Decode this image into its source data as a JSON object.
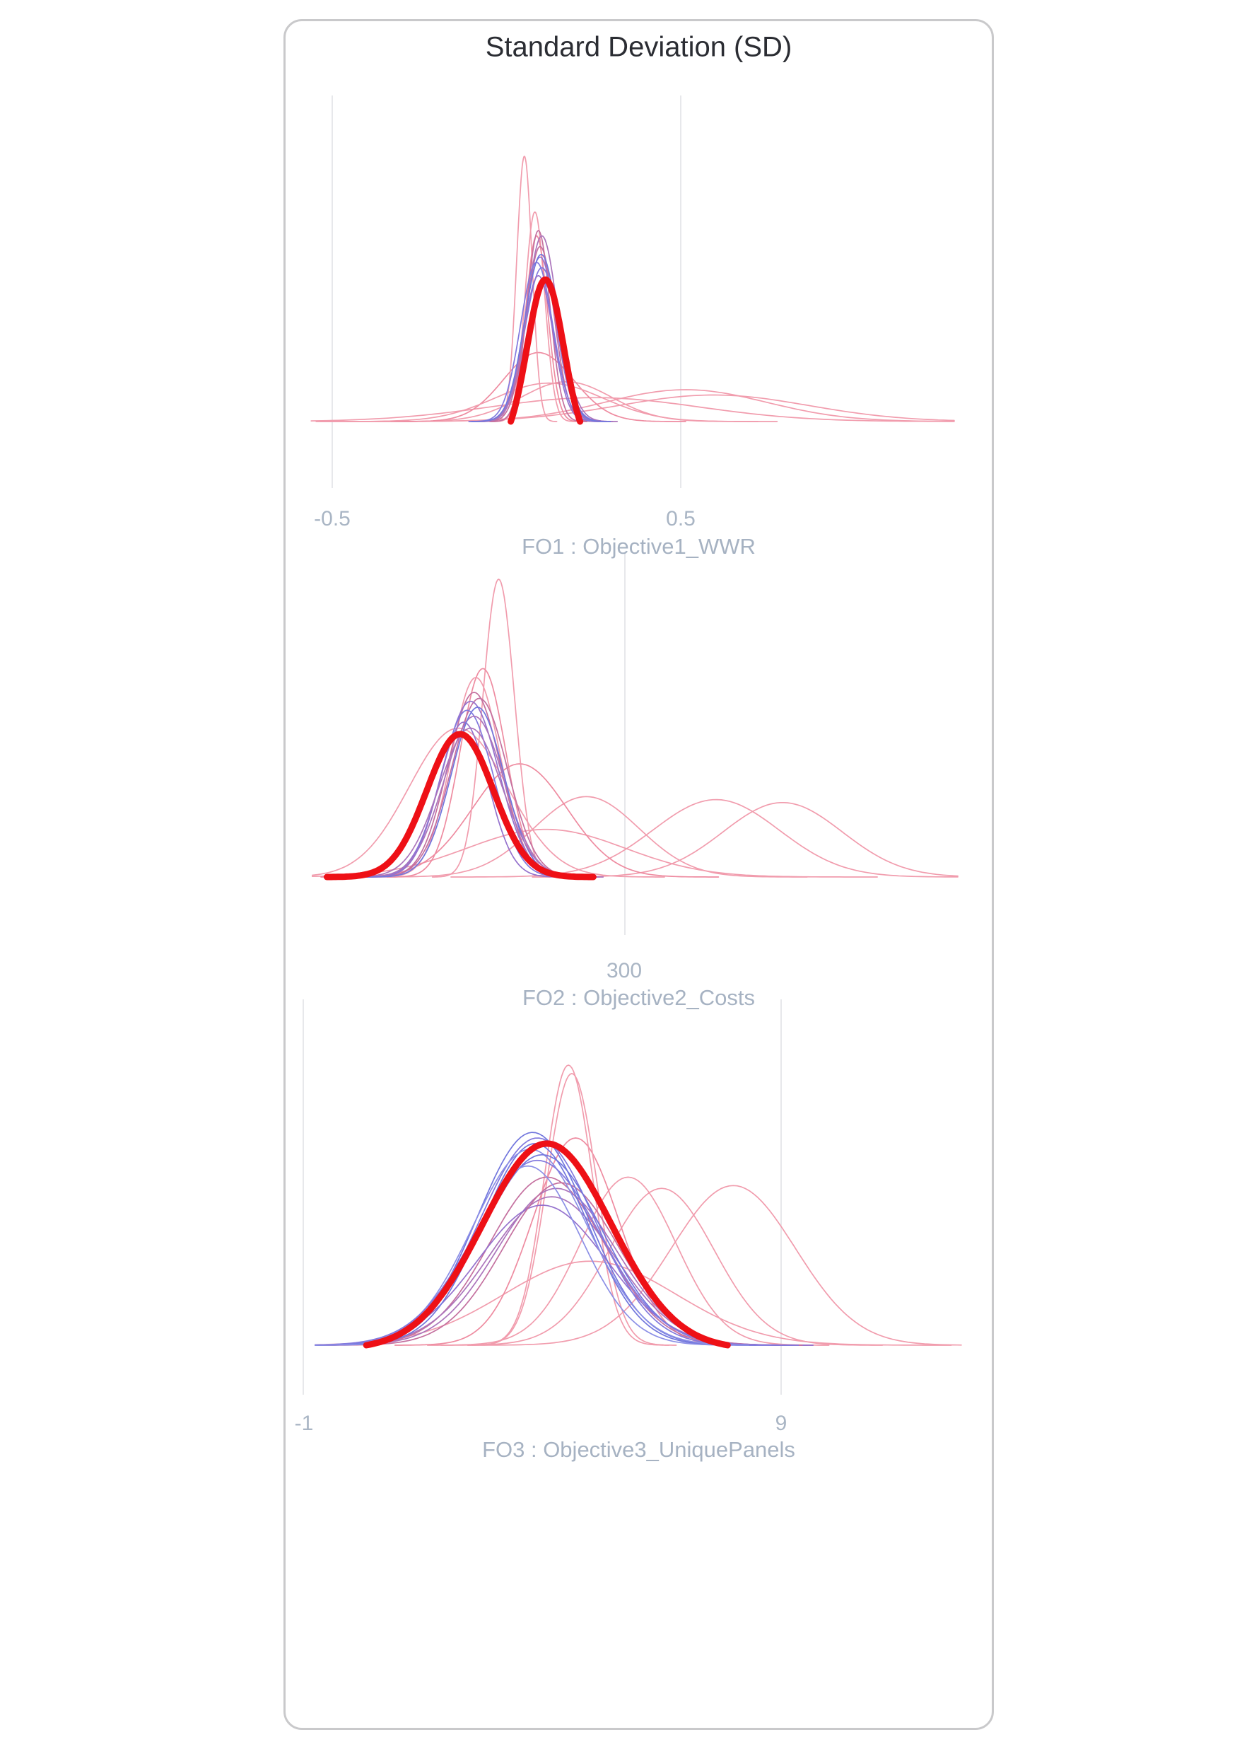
{
  "chart_data": {
    "type": "kde",
    "title": "Standard Deviation (SD)",
    "description": "Three stacked kernel-density (distribution) subplots; many thin iteration curves colored from blue/purple to pink, with one thick red aggregate curve highlighted per subplot.",
    "legend_position": "none",
    "grid": "vertical-only",
    "colors": {
      "highlight_red": "#ee1016",
      "pink": "#f19cad",
      "pink_medium": "#ee8ba0",
      "magenta": "#c4709f",
      "mauve": "#ab74bb",
      "purple": "#9572cd",
      "violet": "#8279de",
      "blue": "#7176dd",
      "blue_light": "#8b8fe6",
      "gridline": "#e7e8eb",
      "tick_text": "#a9b5c4",
      "title_text": "#2b2d33",
      "panel_border": "#c9c9cb"
    },
    "plots": [
      {
        "xlabel": "FO1 : Objective1_WWR",
        "xlim": [
          -0.56,
          1.28
        ],
        "tick_values": [
          -0.5,
          0.5
        ],
        "ticks": [
          {
            "label": "-0.5",
            "x": 66
          },
          {
            "label": "0.5",
            "x": 559
          }
        ],
        "gridlines": [
          {
            "x": 66
          },
          {
            "x": 559
          }
        ],
        "geom": {
          "cx": 313,
          "cxd": 0,
          "ppu": 496,
          "baseY": 566,
          "unitH": 375,
          "dmin": -0.558,
          "dmax": 1.276,
          "gridTop": 105,
          "gridBottom": 660,
          "tickY": 704
        },
        "curves": [
          {
            "m": 0.25,
            "s": 0.3,
            "h": 0.09,
            "color": "#f19cad",
            "w": 1.7
          },
          {
            "m": 0.17,
            "s": 0.13,
            "h": 0.15,
            "color": "#f19cad",
            "w": 1.7
          },
          {
            "m": 0.51,
            "s": 0.23,
            "h": 0.12,
            "color": "#f19cad",
            "w": 1.7
          },
          {
            "m": 0.59,
            "s": 0.27,
            "h": 0.1,
            "color": "#f19cad",
            "w": 1.7
          },
          {
            "m": 0.09,
            "s": 0.1,
            "h": 0.26,
            "color": "#ee8ba0",
            "w": 1.7
          },
          {
            "m": 0.12,
            "s": 0.155,
            "h": 0.145,
            "color": "#f19cad",
            "w": 1.7
          },
          {
            "m": 0.05,
            "s": 0.022,
            "h": 1.0,
            "color": "#f19cad",
            "w": 1.7
          },
          {
            "m": 0.08,
            "s": 0.028,
            "h": 0.79,
            "color": "#f19cad",
            "w": 1.7
          },
          {
            "m": 0.085,
            "s": 0.031,
            "h": 0.7,
            "color": "#ee8ba0",
            "w": 1.7
          },
          {
            "m": 0.09,
            "s": 0.033,
            "h": 0.72,
            "color": "#c4709f",
            "w": 1.7
          },
          {
            "m": 0.095,
            "s": 0.045,
            "h": 0.62,
            "color": "#9572cd",
            "w": 1.7
          },
          {
            "m": 0.1,
            "s": 0.048,
            "h": 0.58,
            "color": "#8279de",
            "w": 1.7
          },
          {
            "m": 0.09,
            "s": 0.042,
            "h": 0.55,
            "color": "#9572cd",
            "w": 1.7
          },
          {
            "m": 0.105,
            "s": 0.05,
            "h": 0.52,
            "color": "#ab74bb",
            "w": 1.7
          },
          {
            "m": 0.095,
            "s": 0.04,
            "h": 0.66,
            "color": "#c4709f",
            "w": 1.7
          },
          {
            "m": 0.1,
            "s": 0.044,
            "h": 0.7,
            "color": "#ab74bb",
            "w": 1.7
          },
          {
            "m": 0.085,
            "s": 0.046,
            "h": 0.6,
            "color": "#8279de",
            "w": 1.7
          },
          {
            "m": 0.098,
            "s": 0.047,
            "h": 0.63,
            "color": "#7176dd",
            "w": 1.7
          },
          {
            "m": 0.11,
            "s": 0.052,
            "h": 0.535,
            "color": "#ee1016",
            "w": 9,
            "edge": 1.9,
            "highlight": true
          }
        ]
      },
      {
        "xlabel": "FO2 : Objective2_Costs",
        "xlim": [
          122,
          490
        ],
        "tick_values": [
          300
        ],
        "ticks": [
          {
            "label": "300",
            "x": 479
          }
        ],
        "gridlines": [
          {
            "x": 480
          }
        ],
        "geom": {
          "cx": 480,
          "cxd": 300,
          "ppu": 2.48,
          "baseY": 1210,
          "unitH": 421,
          "dmin": 121.7,
          "dmax": 489.9,
          "gridTop": 752,
          "gridBottom": 1292,
          "tickY": 1343
        },
        "curves": [
          {
            "m": 255,
            "s": 45,
            "h": 0.16,
            "color": "#f19cad",
            "w": 1.7
          },
          {
            "m": 278,
            "s": 30,
            "h": 0.27,
            "color": "#f19cad",
            "w": 1.7
          },
          {
            "m": 352,
            "s": 36,
            "h": 0.26,
            "color": "#f19cad",
            "w": 1.7
          },
          {
            "m": 390,
            "s": 34,
            "h": 0.25,
            "color": "#f19cad",
            "w": 1.7
          },
          {
            "m": 240,
            "s": 27,
            "h": 0.38,
            "color": "#ee8ba0",
            "w": 1.7
          },
          {
            "m": 205,
            "s": 28,
            "h": 0.5,
            "color": "#f19cad",
            "w": 1.7
          },
          {
            "m": 228,
            "s": 9,
            "h": 1.0,
            "color": "#f19cad",
            "w": 1.7
          },
          {
            "m": 219,
            "s": 13,
            "h": 0.7,
            "color": "#ee8ba0",
            "w": 1.7
          },
          {
            "m": 215,
            "s": 14,
            "h": 0.67,
            "color": "#f19cad",
            "w": 1.7
          },
          {
            "m": 214,
            "s": 15,
            "h": 0.62,
            "color": "#c4709f",
            "w": 1.7
          },
          {
            "m": 217,
            "s": 16,
            "h": 0.6,
            "color": "#c4709f",
            "w": 1.7
          },
          {
            "m": 212,
            "s": 16,
            "h": 0.59,
            "color": "#9572cd",
            "w": 1.7
          },
          {
            "m": 210,
            "s": 15,
            "h": 0.56,
            "color": "#8279de",
            "w": 1.7
          },
          {
            "m": 214,
            "s": 17,
            "h": 0.54,
            "color": "#ab74bb",
            "w": 1.7
          },
          {
            "m": 208,
            "s": 14,
            "h": 0.52,
            "color": "#9572cd",
            "w": 1.7
          },
          {
            "m": 216,
            "s": 15,
            "h": 0.57,
            "color": "#7176dd",
            "w": 1.7
          },
          {
            "m": 212,
            "s": 18,
            "h": 0.5,
            "color": "#ab74bb",
            "w": 1.7
          },
          {
            "m": 206,
            "s": 19,
            "h": 0.48,
            "color": "#ee1016",
            "w": 9,
            "edge": 4.0,
            "highlight": true
          }
        ]
      },
      {
        "xlabel": "FO3 : Objective3_UniquePanels",
        "xlim": [
          -0.75,
          12.77
        ],
        "tick_values": [
          -1,
          9
        ],
        "ticks": [
          {
            "label": "-1",
            "x": 26
          },
          {
            "label": "9",
            "x": 701
          }
        ],
        "gridlines": [
          {
            "x": 25
          },
          {
            "x": 701
          }
        ],
        "geom": {
          "cx": 25,
          "cxd": -1,
          "ppu": 67.6,
          "baseY": 1872,
          "unitH": 396,
          "dmin": -0.75,
          "dmax": 12.77,
          "gridTop": 1383,
          "gridBottom": 1942,
          "tickY": 1983
        },
        "curves": [
          {
            "m": 5.0,
            "s": 1.8,
            "h": 0.3,
            "color": "#f19cad",
            "w": 1.7
          },
          {
            "m": 5.8,
            "s": 1.0,
            "h": 0.6,
            "color": "#f19cad",
            "w": 1.7
          },
          {
            "m": 6.5,
            "s": 1.1,
            "h": 0.56,
            "color": "#f19cad",
            "w": 1.7
          },
          {
            "m": 8.0,
            "s": 1.3,
            "h": 0.57,
            "color": "#f19cad",
            "w": 1.7
          },
          {
            "m": 4.7,
            "s": 0.9,
            "h": 0.74,
            "color": "#ee8ba0",
            "w": 1.7
          },
          {
            "m": 4.55,
            "s": 0.5,
            "h": 1.0,
            "color": "#f19cad",
            "w": 1.7
          },
          {
            "m": 4.62,
            "s": 0.52,
            "h": 0.97,
            "color": "#f19cad",
            "w": 1.7
          },
          {
            "m": 4.1,
            "s": 1.2,
            "h": 0.6,
            "color": "#c4709f",
            "w": 1.7
          },
          {
            "m": 4.3,
            "s": 1.25,
            "h": 0.56,
            "color": "#ab74bb",
            "w": 1.7
          },
          {
            "m": 4.2,
            "s": 1.3,
            "h": 0.53,
            "color": "#ab74bb",
            "w": 1.7
          },
          {
            "m": 4.0,
            "s": 1.35,
            "h": 0.5,
            "color": "#9572cd",
            "w": 1.7
          },
          {
            "m": 4.4,
            "s": 1.2,
            "h": 0.58,
            "color": "#c4709f",
            "w": 1.7
          },
          {
            "m": 3.8,
            "s": 1.15,
            "h": 0.76,
            "color": "#7176dd",
            "w": 1.7
          },
          {
            "m": 3.9,
            "s": 1.2,
            "h": 0.74,
            "color": "#8279de",
            "w": 1.7
          },
          {
            "m": 3.85,
            "s": 1.1,
            "h": 0.72,
            "color": "#7176dd",
            "w": 1.7
          },
          {
            "m": 3.75,
            "s": 1.2,
            "h": 0.7,
            "color": "#8b8fe6",
            "w": 1.7
          },
          {
            "m": 4.0,
            "s": 1.25,
            "h": 0.68,
            "color": "#7176dd",
            "w": 1.7
          },
          {
            "m": 3.9,
            "s": 1.3,
            "h": 0.66,
            "color": "#8279de",
            "w": 1.7
          },
          {
            "m": 3.7,
            "s": 1.1,
            "h": 0.64,
            "color": "#8b8fe6",
            "w": 1.7
          },
          {
            "m": 4.1,
            "s": 1.35,
            "h": 0.72,
            "color": "#ee1016",
            "w": 9,
            "edge": 2.8,
            "highlight": true
          }
        ]
      }
    ]
  }
}
